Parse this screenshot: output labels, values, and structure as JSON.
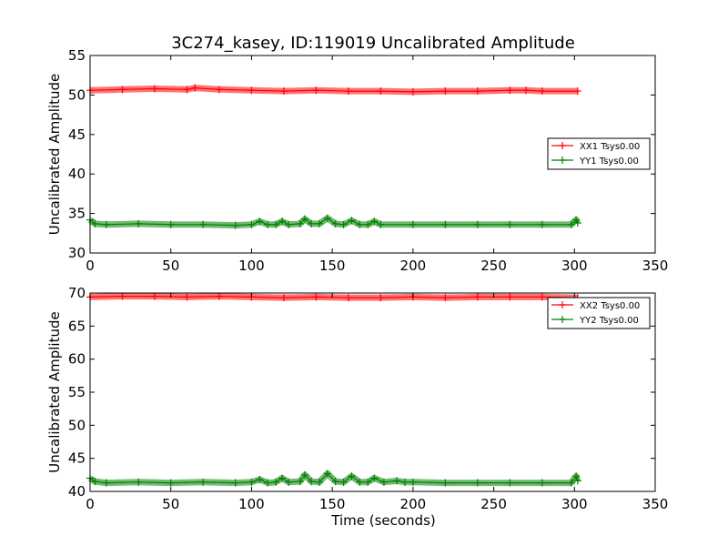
{
  "figure_title": "3C274_kasey, ID:119019 Uncalibrated Amplitude",
  "colors": {
    "red": "#ff0000",
    "green": "#008000"
  },
  "chart_data": [
    {
      "type": "line",
      "title": "3C274_kasey, ID:119019 Uncalibrated Amplitude",
      "xlabel": "",
      "ylabel": "Uncalibrated Amplitude",
      "xlim": [
        0,
        350
      ],
      "ylim": [
        30,
        55
      ],
      "xticks": [
        "0",
        "50",
        "100",
        "150",
        "200",
        "250",
        "300",
        "350"
      ],
      "yticks": [
        "30",
        "35",
        "40",
        "45",
        "50",
        "55"
      ],
      "legend_position": "right",
      "series": [
        {
          "name": "XX1 Tsys0.00",
          "color": "#ff0000",
          "x": [
            0,
            20,
            40,
            60,
            65,
            80,
            100,
            120,
            140,
            160,
            180,
            200,
            220,
            240,
            260,
            270,
            280,
            302
          ],
          "y": [
            50.6,
            50.7,
            50.8,
            50.7,
            50.9,
            50.7,
            50.6,
            50.5,
            50.6,
            50.5,
            50.5,
            50.4,
            50.5,
            50.5,
            50.6,
            50.6,
            50.5,
            50.5
          ]
        },
        {
          "name": "YY1 Tsys0.00",
          "color": "#008000",
          "x": [
            0,
            3,
            10,
            30,
            50,
            70,
            90,
            100,
            105,
            110,
            115,
            119,
            123,
            130,
            133,
            137,
            142,
            147,
            152,
            157,
            162,
            167,
            172,
            176,
            180,
            200,
            220,
            240,
            260,
            280,
            298,
            301,
            302
          ],
          "y": [
            34.2,
            33.7,
            33.6,
            33.7,
            33.6,
            33.6,
            33.5,
            33.6,
            34.0,
            33.6,
            33.6,
            34.0,
            33.6,
            33.7,
            34.3,
            33.7,
            33.7,
            34.4,
            33.7,
            33.6,
            34.1,
            33.6,
            33.6,
            34.0,
            33.6,
            33.6,
            33.6,
            33.6,
            33.6,
            33.6,
            33.6,
            34.2,
            33.8
          ]
        }
      ]
    },
    {
      "type": "line",
      "title": "",
      "xlabel": "Time (seconds)",
      "ylabel": "Uncalibrated Amplitude",
      "xlim": [
        0,
        350
      ],
      "ylim": [
        40,
        70
      ],
      "xticks": [
        "0",
        "50",
        "100",
        "150",
        "200",
        "250",
        "300",
        "350"
      ],
      "yticks": [
        "40",
        "45",
        "50",
        "55",
        "60",
        "65",
        "70"
      ],
      "legend_position": "top-right",
      "series": [
        {
          "name": "XX2 Tsys0.00",
          "color": "#ff0000",
          "x": [
            0,
            20,
            40,
            60,
            80,
            100,
            120,
            140,
            160,
            180,
            200,
            220,
            240,
            260,
            280,
            302
          ],
          "y": [
            69.4,
            69.5,
            69.5,
            69.4,
            69.5,
            69.4,
            69.3,
            69.4,
            69.3,
            69.3,
            69.4,
            69.3,
            69.4,
            69.4,
            69.4,
            69.3
          ]
        },
        {
          "name": "YY2 Tsys0.00",
          "color": "#008000",
          "x": [
            0,
            3,
            10,
            30,
            50,
            70,
            90,
            100,
            105,
            110,
            115,
            119,
            123,
            130,
            133,
            137,
            142,
            147,
            152,
            157,
            162,
            167,
            172,
            176,
            182,
            190,
            195,
            200,
            220,
            240,
            260,
            280,
            298,
            301,
            302
          ],
          "y": [
            42.0,
            41.5,
            41.3,
            41.4,
            41.3,
            41.4,
            41.3,
            41.4,
            41.8,
            41.3,
            41.4,
            42.0,
            41.4,
            41.5,
            42.5,
            41.5,
            41.4,
            42.7,
            41.5,
            41.4,
            42.3,
            41.4,
            41.4,
            42.0,
            41.4,
            41.6,
            41.4,
            41.4,
            41.3,
            41.3,
            41.3,
            41.3,
            41.3,
            42.3,
            41.6
          ]
        }
      ]
    }
  ]
}
